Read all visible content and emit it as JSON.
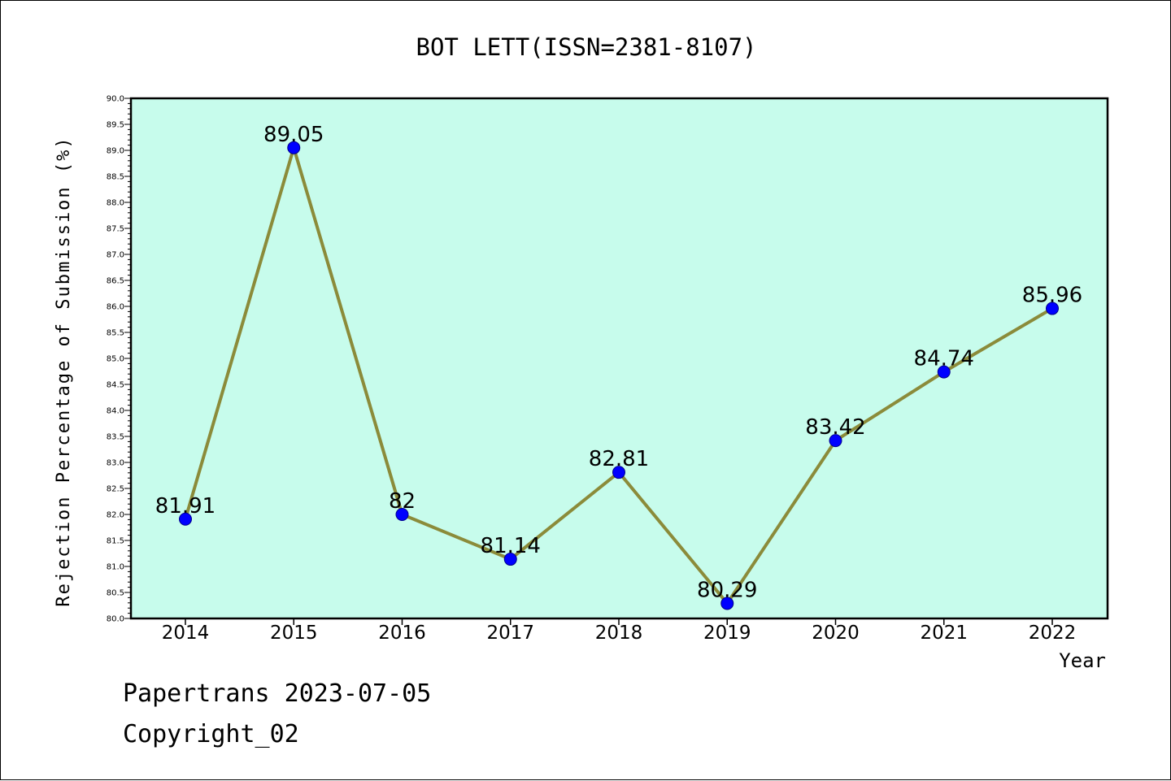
{
  "chart_data": {
    "type": "line",
    "title": "BOT LETT(ISSN=2381-8107)",
    "xlabel": "Year",
    "ylabel": "Rejection Percentage of Submission (%)",
    "categories": [
      "2014",
      "2015",
      "2016",
      "2017",
      "2018",
      "2019",
      "2020",
      "2021",
      "2022"
    ],
    "series": [
      {
        "values": [
          81.91,
          89.05,
          82,
          81.14,
          82.81,
          80.29,
          83.42,
          84.74,
          85.96
        ],
        "labels": [
          "81.91",
          "89.05",
          "82",
          "81.14",
          "82.81",
          "80.29",
          "83.42",
          "84.74",
          "85.96"
        ]
      }
    ],
    "ylim": [
      80.0,
      90.0
    ],
    "yticks": [
      "80.0",
      "80.5",
      "81.0",
      "81.5",
      "82.0",
      "82.5",
      "83.0",
      "83.5",
      "84.0",
      "84.5",
      "85.0",
      "85.5",
      "86.0",
      "86.5",
      "87.0",
      "87.5",
      "88.0",
      "88.5",
      "89.0",
      "89.5",
      "90.0"
    ],
    "grid": false,
    "colors": {
      "plot_background": "#c7fcec",
      "line": "#8b8b3a",
      "marker": "#0000ff"
    }
  },
  "footer": {
    "line1": "Papertrans 2023-07-05",
    "line2": "Copyright_02"
  }
}
